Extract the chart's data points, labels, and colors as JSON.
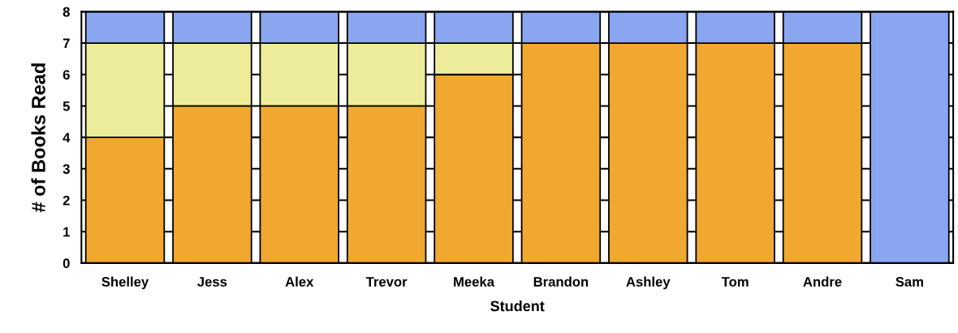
{
  "chart_data": {
    "type": "bar",
    "stacked": true,
    "xlabel": "Student",
    "ylabel": "# of Books Read",
    "categories": [
      "Shelley",
      "Jess",
      "Alex",
      "Trevor",
      "Meeka",
      "Brandon",
      "Ashley",
      "Tom",
      "Andre",
      "Sam"
    ],
    "series": [
      {
        "color": "#f0a830",
        "values": [
          4,
          5,
          5,
          5,
          6,
          7,
          7,
          7,
          7,
          0
        ]
      },
      {
        "color": "#ecec9a",
        "values": [
          3,
          2,
          2,
          2,
          1,
          0,
          0,
          0,
          0,
          0
        ]
      },
      {
        "color": "#8aa6f0",
        "values": [
          1,
          1,
          1,
          1,
          1,
          1,
          1,
          1,
          1,
          8
        ]
      }
    ],
    "ylim": [
      0,
      8
    ],
    "yticks": [
      0,
      1,
      2,
      3,
      4,
      5,
      6,
      7,
      8
    ],
    "grid": "y"
  }
}
